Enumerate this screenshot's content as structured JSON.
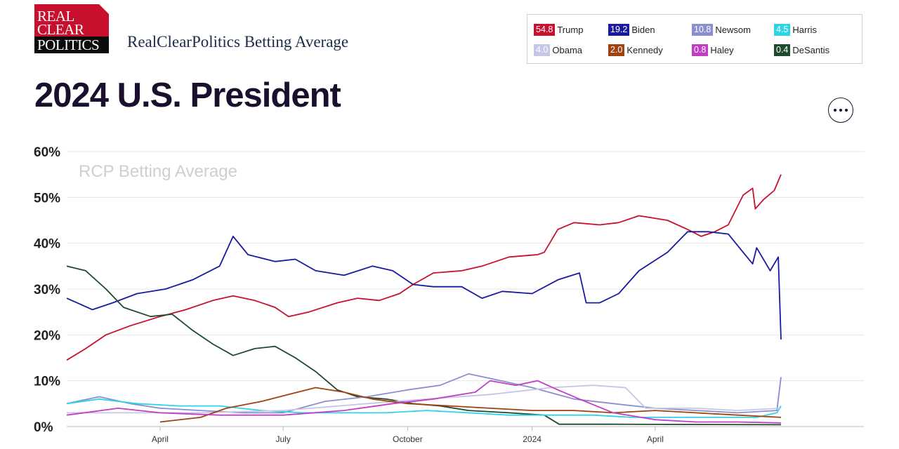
{
  "logo": {
    "line1": "REAL",
    "line2": "CLEAR",
    "line3": "POLITICS"
  },
  "subtitle": "RealClearPolitics Betting Average",
  "title": "2024 U.S. President",
  "legend": [
    {
      "value": "54.8",
      "name": "Trump",
      "color": "#c8102e"
    },
    {
      "value": "19.2",
      "name": "Biden",
      "color": "#1a1aa0"
    },
    {
      "value": "10.8",
      "name": "Newsom",
      "color": "#8a8fd0"
    },
    {
      "value": "4.5",
      "name": "Harris",
      "color": "#2fd3e8"
    },
    {
      "value": "4.0",
      "name": "Obama",
      "color": "#c6c6e6"
    },
    {
      "value": "2.0",
      "name": "Kennedy",
      "color": "#a0420f"
    },
    {
      "value": "0.8",
      "name": "Haley",
      "color": "#c23ec2"
    },
    {
      "value": "0.4",
      "name": "DeSantis",
      "color": "#1f4a2e"
    }
  ],
  "chart_data": {
    "type": "line",
    "title": "2024 U.S. President",
    "watermark": "RCP Betting Average",
    "x_range": [
      "2023-01-22",
      "2024-07-03"
    ],
    "ylim": [
      0,
      60
    ],
    "y_ticks": [
      "0%",
      "10%",
      "20%",
      "30%",
      "40%",
      "50%",
      "60%"
    ],
    "x_ticks": [
      {
        "label": "April",
        "date": "2023-04-01"
      },
      {
        "label": "July",
        "date": "2023-07-01"
      },
      {
        "label": "October",
        "date": "2023-10-01"
      },
      {
        "label": "2024",
        "date": "2024-01-01"
      },
      {
        "label": "April",
        "date": "2024-04-01"
      }
    ],
    "grid": true,
    "legend_placement": "top-right",
    "series": [
      {
        "name": "Trump",
        "color": "#c8102e",
        "points": [
          [
            "2023-01-22",
            14.5
          ],
          [
            "2023-02-05",
            17
          ],
          [
            "2023-02-20",
            20
          ],
          [
            "2023-03-10",
            22
          ],
          [
            "2023-04-01",
            24
          ],
          [
            "2023-04-20",
            25.5
          ],
          [
            "2023-05-10",
            27.5
          ],
          [
            "2023-05-25",
            28.5
          ],
          [
            "2023-06-10",
            27.5
          ],
          [
            "2023-06-25",
            26
          ],
          [
            "2023-07-05",
            24
          ],
          [
            "2023-07-20",
            25
          ],
          [
            "2023-08-10",
            27
          ],
          [
            "2023-08-25",
            28
          ],
          [
            "2023-09-10",
            27.5
          ],
          [
            "2023-09-25",
            29
          ],
          [
            "2023-10-05",
            31
          ],
          [
            "2023-10-20",
            33.5
          ],
          [
            "2023-11-10",
            34
          ],
          [
            "2023-11-25",
            35
          ],
          [
            "2023-12-15",
            37
          ],
          [
            "2024-01-05",
            37.5
          ],
          [
            "2024-01-10",
            38
          ],
          [
            "2024-01-20",
            43
          ],
          [
            "2024-02-01",
            44.5
          ],
          [
            "2024-02-20",
            44
          ],
          [
            "2024-03-05",
            44.5
          ],
          [
            "2024-03-20",
            46
          ],
          [
            "2024-04-10",
            45
          ],
          [
            "2024-04-25",
            43
          ],
          [
            "2024-05-05",
            41.5
          ],
          [
            "2024-05-15",
            42.5
          ],
          [
            "2024-05-25",
            44
          ],
          [
            "2024-06-05",
            50.5
          ],
          [
            "2024-06-12",
            52
          ],
          [
            "2024-06-14",
            47.5
          ],
          [
            "2024-06-20",
            49.5
          ],
          [
            "2024-06-28",
            51.5
          ],
          [
            "2024-07-03",
            55
          ]
        ]
      },
      {
        "name": "Biden",
        "color": "#1a1aa0",
        "points": [
          [
            "2023-01-22",
            28
          ],
          [
            "2023-02-10",
            25.5
          ],
          [
            "2023-02-25",
            27
          ],
          [
            "2023-03-15",
            29
          ],
          [
            "2023-04-05",
            30
          ],
          [
            "2023-04-25",
            32
          ],
          [
            "2023-05-15",
            35
          ],
          [
            "2023-05-25",
            41.5
          ],
          [
            "2023-06-05",
            37.5
          ],
          [
            "2023-06-25",
            36
          ],
          [
            "2023-07-10",
            36.5
          ],
          [
            "2023-07-25",
            34
          ],
          [
            "2023-08-15",
            33
          ],
          [
            "2023-09-05",
            35
          ],
          [
            "2023-09-20",
            34
          ],
          [
            "2023-10-05",
            31
          ],
          [
            "2023-10-20",
            30.5
          ],
          [
            "2023-11-10",
            30.5
          ],
          [
            "2023-11-25",
            28
          ],
          [
            "2023-12-10",
            29.5
          ],
          [
            "2024-01-01",
            29
          ],
          [
            "2024-01-20",
            32
          ],
          [
            "2024-02-05",
            33.5
          ],
          [
            "2024-02-10",
            27
          ],
          [
            "2024-02-20",
            27
          ],
          [
            "2024-03-05",
            29
          ],
          [
            "2024-03-20",
            34
          ],
          [
            "2024-04-10",
            38
          ],
          [
            "2024-04-25",
            42.5
          ],
          [
            "2024-05-10",
            42.5
          ],
          [
            "2024-05-25",
            42
          ],
          [
            "2024-06-05",
            38
          ],
          [
            "2024-06-12",
            35.5
          ],
          [
            "2024-06-15",
            39
          ],
          [
            "2024-06-25",
            34
          ],
          [
            "2024-07-01",
            37
          ],
          [
            "2024-07-03",
            19
          ]
        ]
      },
      {
        "name": "DeSantis",
        "color": "#1f4a2e",
        "points": [
          [
            "2023-01-22",
            35
          ],
          [
            "2023-02-05",
            34
          ],
          [
            "2023-02-20",
            30
          ],
          [
            "2023-03-05",
            26
          ],
          [
            "2023-03-25",
            24
          ],
          [
            "2023-04-10",
            24.5
          ],
          [
            "2023-04-25",
            21
          ],
          [
            "2023-05-10",
            18
          ],
          [
            "2023-05-25",
            15.5
          ],
          [
            "2023-06-10",
            17
          ],
          [
            "2023-06-25",
            17.5
          ],
          [
            "2023-07-10",
            15
          ],
          [
            "2023-07-25",
            12
          ],
          [
            "2023-08-10",
            8
          ],
          [
            "2023-08-25",
            6.5
          ],
          [
            "2023-09-15",
            6
          ],
          [
            "2023-10-05",
            5
          ],
          [
            "2023-10-25",
            4.5
          ],
          [
            "2023-11-15",
            3.5
          ],
          [
            "2023-12-15",
            3
          ],
          [
            "2024-01-10",
            2.5
          ],
          [
            "2024-01-21",
            0.5
          ],
          [
            "2024-03-01",
            0.5
          ],
          [
            "2024-07-03",
            0.4
          ]
        ]
      },
      {
        "name": "Newsom",
        "color": "#8a8fd0",
        "points": [
          [
            "2023-01-22",
            5
          ],
          [
            "2023-02-15",
            6.5
          ],
          [
            "2023-03-10",
            5
          ],
          [
            "2023-04-01",
            4
          ],
          [
            "2023-05-01",
            3.5
          ],
          [
            "2023-06-01",
            3
          ],
          [
            "2023-07-01",
            3
          ],
          [
            "2023-08-01",
            5.5
          ],
          [
            "2023-09-01",
            6.5
          ],
          [
            "2023-10-01",
            8
          ],
          [
            "2023-10-25",
            9
          ],
          [
            "2023-11-15",
            11.5
          ],
          [
            "2023-12-01",
            10.5
          ],
          [
            "2024-01-01",
            8.5
          ],
          [
            "2024-02-01",
            6
          ],
          [
            "2024-03-01",
            5
          ],
          [
            "2024-04-01",
            4
          ],
          [
            "2024-05-01",
            3.5
          ],
          [
            "2024-06-01",
            3
          ],
          [
            "2024-06-30",
            3.5
          ],
          [
            "2024-07-03",
            10.8
          ]
        ]
      },
      {
        "name": "Harris",
        "color": "#2fd3e8",
        "points": [
          [
            "2023-01-22",
            5
          ],
          [
            "2023-02-15",
            6
          ],
          [
            "2023-03-15",
            5
          ],
          [
            "2023-04-15",
            4.5
          ],
          [
            "2023-05-15",
            4.5
          ],
          [
            "2023-06-15",
            3.5
          ],
          [
            "2023-07-15",
            3
          ],
          [
            "2023-08-15",
            3
          ],
          [
            "2023-09-15",
            3
          ],
          [
            "2023-10-15",
            3.5
          ],
          [
            "2023-11-15",
            3
          ],
          [
            "2023-12-15",
            2.5
          ],
          [
            "2024-01-15",
            2.5
          ],
          [
            "2024-02-15",
            2.5
          ],
          [
            "2024-03-15",
            2
          ],
          [
            "2024-04-15",
            2
          ],
          [
            "2024-05-15",
            2
          ],
          [
            "2024-06-15",
            2
          ],
          [
            "2024-06-30",
            3
          ],
          [
            "2024-07-03",
            4.5
          ]
        ]
      },
      {
        "name": "Obama",
        "color": "#c6c6e6",
        "points": [
          [
            "2023-01-22",
            3
          ],
          [
            "2023-03-01",
            3
          ],
          [
            "2023-05-01",
            3
          ],
          [
            "2023-07-01",
            3.5
          ],
          [
            "2023-09-01",
            5
          ],
          [
            "2023-10-15",
            6
          ],
          [
            "2023-12-01",
            7
          ],
          [
            "2024-01-15",
            8.5
          ],
          [
            "2024-02-15",
            9
          ],
          [
            "2024-03-10",
            8.5
          ],
          [
            "2024-03-25",
            4
          ],
          [
            "2024-05-01",
            4
          ],
          [
            "2024-06-01",
            3.5
          ],
          [
            "2024-07-03",
            4
          ]
        ]
      },
      {
        "name": "Kennedy",
        "color": "#a0420f",
        "points": [
          [
            "2023-04-01",
            1
          ],
          [
            "2023-05-01",
            2
          ],
          [
            "2023-05-20",
            4
          ],
          [
            "2023-06-15",
            5.5
          ],
          [
            "2023-07-05",
            7
          ],
          [
            "2023-07-25",
            8.5
          ],
          [
            "2023-08-15",
            7.5
          ],
          [
            "2023-09-05",
            6
          ],
          [
            "2023-10-01",
            5
          ],
          [
            "2023-11-01",
            4.5
          ],
          [
            "2023-12-01",
            4
          ],
          [
            "2024-01-01",
            3.5
          ],
          [
            "2024-02-01",
            3.5
          ],
          [
            "2024-03-01",
            3
          ],
          [
            "2024-04-01",
            3.5
          ],
          [
            "2024-05-01",
            3
          ],
          [
            "2024-06-01",
            2.5
          ],
          [
            "2024-07-03",
            2
          ]
        ]
      },
      {
        "name": "Haley",
        "color": "#c23ec2",
        "points": [
          [
            "2023-01-22",
            2.5
          ],
          [
            "2023-03-01",
            4
          ],
          [
            "2023-04-01",
            3
          ],
          [
            "2023-05-15",
            2.5
          ],
          [
            "2023-07-01",
            2.5
          ],
          [
            "2023-08-15",
            3.5
          ],
          [
            "2023-09-20",
            5
          ],
          [
            "2023-10-20",
            6
          ],
          [
            "2023-11-20",
            7.5
          ],
          [
            "2023-12-01",
            10
          ],
          [
            "2023-12-20",
            9
          ],
          [
            "2024-01-05",
            10
          ],
          [
            "2024-01-20",
            8
          ],
          [
            "2024-02-05",
            6
          ],
          [
            "2024-03-01",
            3
          ],
          [
            "2024-04-01",
            1.5
          ],
          [
            "2024-05-01",
            1
          ],
          [
            "2024-06-01",
            1
          ],
          [
            "2024-07-03",
            0.8
          ]
        ]
      }
    ]
  }
}
